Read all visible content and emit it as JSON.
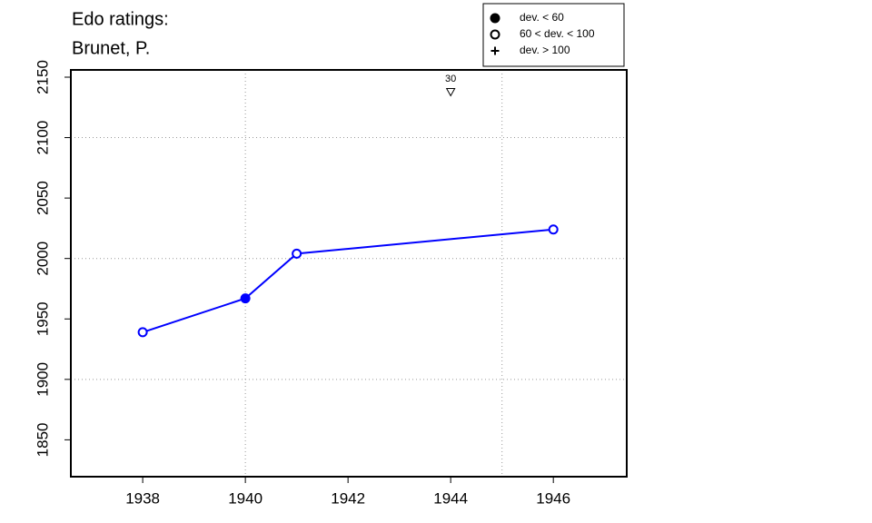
{
  "chart_data": {
    "type": "line",
    "title": [
      "Edo ratings:",
      "Brunet, P."
    ],
    "series": [
      {
        "name": "Brunet, P.",
        "color": "#0000ff",
        "x": [
          1938,
          1940,
          1941,
          1946
        ],
        "values": [
          1939,
          1967,
          2004,
          2024
        ],
        "markers": [
          "open",
          "filled",
          "open",
          "open"
        ]
      }
    ],
    "annotations": [
      {
        "x": 1944,
        "y": 2138,
        "label": "30",
        "marker": "triangle-down"
      }
    ],
    "legend": {
      "position": "top-right",
      "items": [
        {
          "label": "dev. < 60",
          "marker": "filled"
        },
        {
          "label": "60 < dev. < 100",
          "marker": "open"
        },
        {
          "label": "dev. > 100",
          "marker": "plus"
        }
      ]
    },
    "xlim": [
      1936.6,
      1947.43
    ],
    "ylim": [
      1819.5,
      2156
    ],
    "xticks": [
      1938,
      1940,
      1942,
      1944,
      1946
    ],
    "yticks": [
      1850,
      1900,
      1950,
      2000,
      2050,
      2100,
      2150
    ],
    "xgrid": [
      1940,
      1945
    ],
    "ygrid": [
      1900,
      2000,
      2100
    ],
    "grid": true
  }
}
